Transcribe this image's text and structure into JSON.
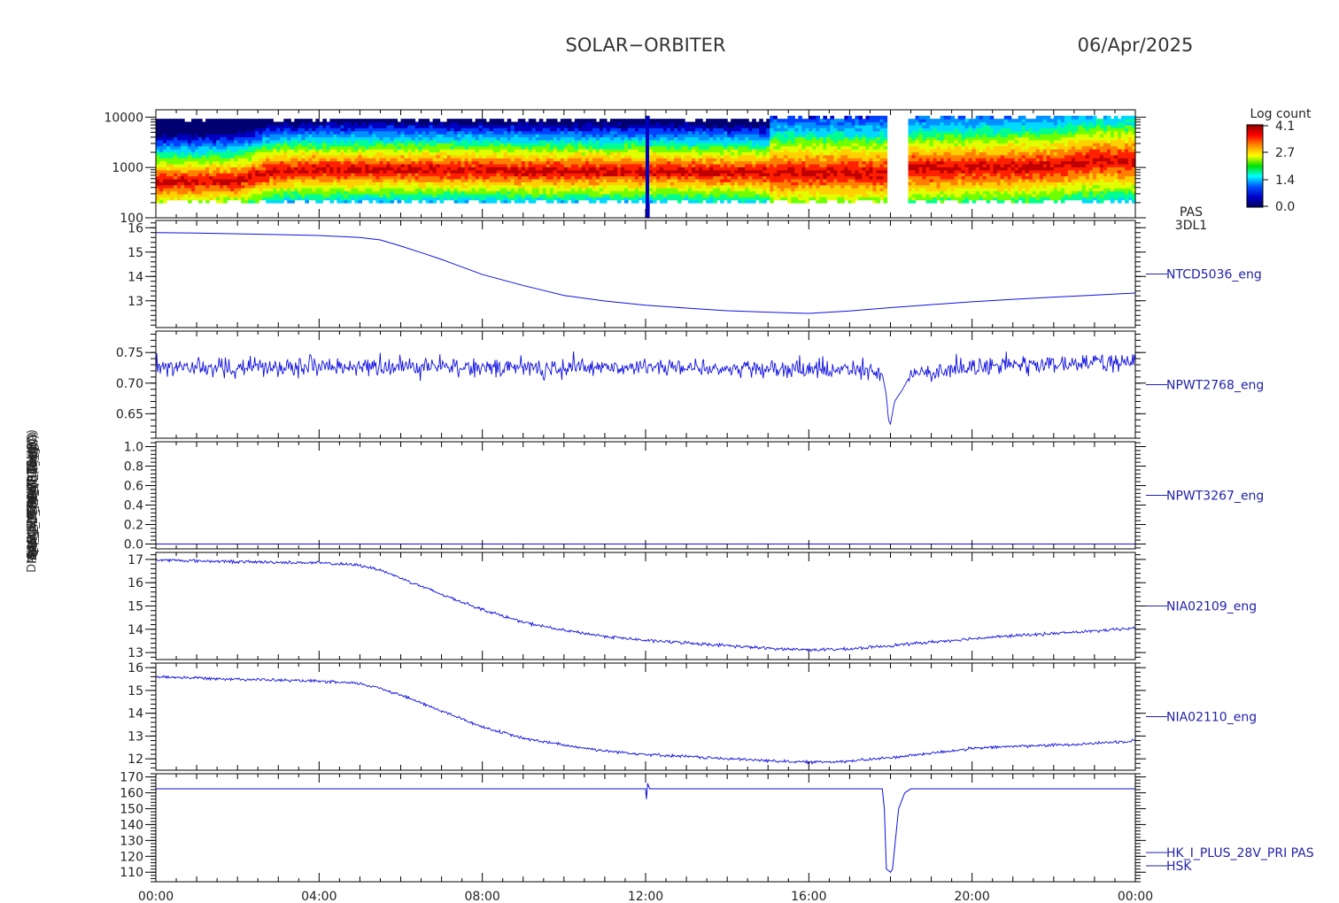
{
  "header": {
    "mission": "SOLAR−ORBITER",
    "date": "06/Apr/2025"
  },
  "side_labels": {
    "left_stacked": [
      "(eV)",
      "Approx Temp (DegC)",
      "BOARD_TEMP (DegC)",
      "SWA_EAS_ALT_TEMP",
      "EAS_ALT_TEMP (DegC)",
      "MAG_TEMP (DegC)",
      "PAS_THERM_1 (DegC)",
      "PAS_THERM_2 (DegC)",
      "(mA)",
      "DM_HK_IMON_PRIM (mA)"
    ]
  },
  "colorbar": {
    "title": "Log count",
    "ticks": [
      "4.1",
      "2.7",
      "1.4",
      "0.0"
    ],
    "colors": [
      "#8b0000",
      "#ff0000",
      "#ff8c00",
      "#ffff00",
      "#00e000",
      "#00ffff",
      "#0050ff",
      "#0000c8",
      "#000060"
    ]
  },
  "x_ticks": [
    "00:00",
    "04:00",
    "08:00",
    "12:00",
    "16:00",
    "20:00",
    "00:00"
  ],
  "chart_data": [
    {
      "type": "heatmap",
      "panel_id": "spectrogram",
      "right_label": [
        "PAS",
        "3DL1"
      ],
      "ylabel": "(eV)",
      "y_log": true,
      "ylim": [
        100,
        14000
      ],
      "y_ticks": [
        "10000",
        "1000",
        "100"
      ],
      "y_tick_values": [
        10000,
        1000,
        100
      ],
      "x_range_hours": [
        0,
        24
      ],
      "peak_energy_eV": {
        "x": [
          0,
          2,
          3,
          5,
          8,
          10,
          12,
          14,
          15,
          17.8,
          18.5,
          20,
          22,
          23,
          24
        ],
        "y": [
          520,
          560,
          880,
          930,
          900,
          860,
          870,
          830,
          800,
          790,
          950,
          980,
          1060,
          1400,
          1400
        ]
      },
      "data_gaps_hours": [
        [
          17.9,
          18.45
        ]
      ],
      "spike_hours": 12.05
    },
    {
      "type": "line",
      "panel_id": "ntcd5036",
      "right_label": "NTCD5036_eng",
      "ylim": [
        11.9,
        16.3
      ],
      "y_ticks": [
        "16",
        "15",
        "14",
        "13"
      ],
      "y_tick_values": [
        16,
        15,
        14,
        13
      ],
      "series": [
        {
          "x": [
            0,
            1,
            2,
            3,
            4,
            5,
            5.5,
            6,
            6.5,
            7,
            8,
            9,
            10,
            11,
            12,
            13,
            14,
            15,
            16,
            17,
            18,
            19,
            20,
            21,
            22,
            23,
            24
          ],
          "y": [
            15.8,
            15.78,
            15.75,
            15.72,
            15.68,
            15.6,
            15.5,
            15.25,
            14.98,
            14.7,
            14.08,
            13.63,
            13.22,
            12.99,
            12.82,
            12.7,
            12.59,
            12.53,
            12.48,
            12.58,
            12.72,
            12.84,
            12.96,
            13.06,
            13.15,
            13.23,
            13.32
          ]
        }
      ]
    },
    {
      "type": "line",
      "panel_id": "npwt2768",
      "right_label": "NPWT2768_eng",
      "ylim": [
        0.61,
        0.785
      ],
      "y_ticks": [
        "0.75",
        "0.70",
        "0.65"
      ],
      "y_tick_values": [
        0.75,
        0.7,
        0.65
      ],
      "series": [
        {
          "x": [
            0,
            4,
            8,
            12,
            12.02,
            12.05,
            17.6,
            17.8,
            17.9,
            17.95,
            18.0,
            18.1,
            18.3,
            18.5,
            20,
            24
          ],
          "y": [
            0.725,
            0.727,
            0.726,
            0.725,
            0.705,
            0.726,
            0.72,
            0.715,
            0.68,
            0.64,
            0.633,
            0.67,
            0.69,
            0.715,
            0.727,
            0.735
          ]
        }
      ],
      "noise_amplitude": 0.012
    },
    {
      "type": "line",
      "panel_id": "npwt3267",
      "right_label": "NPWT3267_eng",
      "ylim": [
        -0.05,
        1.05
      ],
      "y_ticks": [
        "1.0",
        "0.8",
        "0.6",
        "0.4",
        "0.2",
        "0.0"
      ],
      "y_tick_values": [
        1.0,
        0.8,
        0.6,
        0.4,
        0.2,
        0.0
      ],
      "series": [
        {
          "x": [
            0,
            24
          ],
          "y": [
            0,
            0
          ]
        }
      ]
    },
    {
      "type": "line",
      "panel_id": "nia02109",
      "right_label": "NIA02109_eng",
      "ylim": [
        12.7,
        17.3
      ],
      "y_ticks": [
        "17",
        "16",
        "15",
        "14",
        "13"
      ],
      "y_tick_values": [
        17,
        16,
        15,
        14,
        13
      ],
      "series": [
        {
          "x": [
            0,
            2,
            4,
            5,
            5.5,
            6,
            7,
            8,
            9,
            10,
            11,
            12,
            13,
            14,
            15,
            16,
            17,
            18,
            19,
            20,
            21,
            22,
            23,
            24
          ],
          "y": [
            16.98,
            16.9,
            16.85,
            16.75,
            16.55,
            16.2,
            15.5,
            14.85,
            14.3,
            13.95,
            13.7,
            13.52,
            13.42,
            13.3,
            13.18,
            13.12,
            13.15,
            13.3,
            13.45,
            13.6,
            13.72,
            13.82,
            13.92,
            14.05
          ]
        }
      ],
      "noise_amplitude": 0.06
    },
    {
      "type": "line",
      "panel_id": "nia02110",
      "right_label": "NIA02110_eng",
      "ylim": [
        11.5,
        16.2
      ],
      "y_ticks": [
        "16",
        "15",
        "14",
        "13",
        "12"
      ],
      "y_tick_values": [
        16,
        15,
        14,
        13,
        12
      ],
      "series": [
        {
          "x": [
            0,
            2,
            4,
            5,
            5.5,
            6,
            7,
            8,
            9,
            10,
            11,
            12,
            13,
            14,
            15,
            16,
            17,
            18,
            19,
            20,
            21,
            22,
            23,
            24
          ],
          "y": [
            15.6,
            15.5,
            15.4,
            15.3,
            15.1,
            14.8,
            14.1,
            13.4,
            12.9,
            12.6,
            12.35,
            12.2,
            12.1,
            12.0,
            11.92,
            11.85,
            11.9,
            12.05,
            12.25,
            12.45,
            12.55,
            12.6,
            12.68,
            12.8
          ]
        }
      ],
      "noise_amplitude": 0.06
    },
    {
      "type": "line",
      "panel_id": "hk_i_plus",
      "right_label": [
        "HK_I_PLUS_28V_PRI PAS",
        "HSK"
      ],
      "ylim": [
        104,
        172
      ],
      "y_ticks": [
        "170",
        "160",
        "150",
        "140",
        "130",
        "120",
        "110"
      ],
      "y_tick_values": [
        170,
        160,
        150,
        140,
        130,
        120,
        110
      ],
      "series": [
        {
          "x": [
            0,
            12.0,
            12.02,
            12.05,
            12.1,
            12.15,
            17.8,
            17.85,
            17.9,
            18.0,
            18.05,
            18.2,
            18.35,
            18.5,
            24
          ],
          "y": [
            162.5,
            162.5,
            156,
            166,
            162.5,
            162.5,
            162.5,
            150,
            112,
            110,
            112,
            150,
            160,
            162.5,
            162.5
          ]
        }
      ]
    }
  ]
}
